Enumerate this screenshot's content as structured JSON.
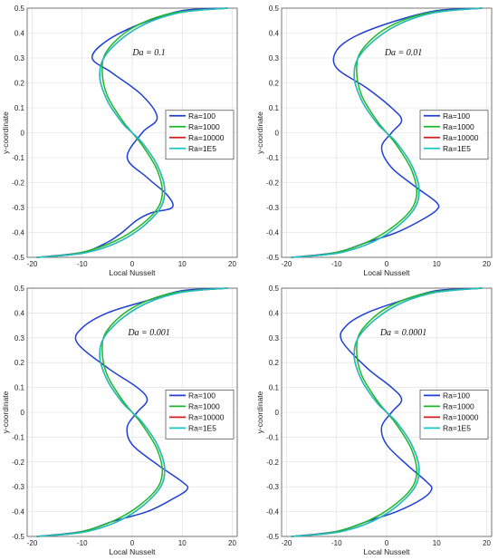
{
  "chart_data": [
    {
      "type": "line",
      "annotation": "Da = 0.1",
      "xlabel": "Local Nusselt",
      "ylabel": "y-coordinate",
      "xlim": [
        -21,
        21
      ],
      "ylim": [
        -0.5,
        0.5
      ],
      "xticks": [
        "-20",
        "-10",
        "0",
        "10",
        "20"
      ],
      "yticks": [
        "-0.5",
        "-0.4",
        "-0.3",
        "-0.2",
        "-0.1",
        "0",
        "0.1",
        "0.2",
        "0.3",
        "0.4",
        "0.5"
      ],
      "grid": true,
      "legend": "right",
      "series": [
        {
          "name": "Ra=100",
          "color": "#1f3fd6",
          "x": [
            -19,
            -10,
            -5,
            -2,
            1,
            4,
            8,
            7,
            3,
            -1,
            2,
            5,
            2,
            -4,
            -8,
            -5,
            2,
            10,
            19
          ],
          "y": [
            -0.5,
            -0.48,
            -0.44,
            -0.4,
            -0.35,
            -0.32,
            -0.3,
            -0.25,
            -0.18,
            -0.1,
            0,
            0.06,
            0.15,
            0.24,
            0.3,
            0.37,
            0.44,
            0.49,
            0.5
          ]
        },
        {
          "name": "Ra=1000",
          "color": "#1db82a",
          "x": [
            -19,
            -10,
            -2,
            4,
            6,
            5,
            2,
            0,
            -2,
            -5,
            -6,
            -5,
            0,
            8,
            19
          ],
          "y": [
            -0.5,
            -0.48,
            -0.42,
            -0.33,
            -0.25,
            -0.15,
            -0.05,
            0,
            0.05,
            0.15,
            0.25,
            0.33,
            0.42,
            0.48,
            0.5
          ]
        },
        {
          "name": "Ra=10000",
          "color": "#d61d1d",
          "x": [
            -19,
            -9,
            -1,
            5,
            6.5,
            5,
            2,
            0,
            -2,
            -5,
            -6.5,
            -5,
            1,
            9,
            19
          ],
          "y": [
            -0.5,
            -0.48,
            -0.42,
            -0.32,
            -0.23,
            -0.13,
            -0.04,
            0,
            0.04,
            0.13,
            0.23,
            0.32,
            0.42,
            0.48,
            0.5
          ]
        },
        {
          "name": "Ra=1E5",
          "color": "#18c4c4",
          "x": [
            -19,
            -9,
            -1,
            5,
            6.5,
            5,
            2,
            0,
            -2,
            -5,
            -6.5,
            -5,
            1,
            9,
            19
          ],
          "y": [
            -0.5,
            -0.48,
            -0.42,
            -0.32,
            -0.23,
            -0.13,
            -0.04,
            0,
            0.04,
            0.13,
            0.23,
            0.32,
            0.42,
            0.48,
            0.5
          ]
        }
      ]
    },
    {
      "type": "line",
      "annotation": "Da = 0.01",
      "xlabel": "Local Nusselt",
      "ylabel": "y-coordinate",
      "xlim": [
        -21,
        21
      ],
      "ylim": [
        -0.5,
        0.5
      ],
      "xticks": [
        "-20",
        "-10",
        "0",
        "10",
        "20"
      ],
      "yticks": [
        "-0.5",
        "-0.4",
        "-0.3",
        "-0.2",
        "-0.1",
        "0",
        "0.1",
        "0.2",
        "0.3",
        "0.4",
        "0.5"
      ],
      "grid": true,
      "legend": "right",
      "series": [
        {
          "name": "Ra=100",
          "color": "#1f3fd6",
          "x": [
            -19,
            -10,
            -4,
            2,
            7,
            10,
            10,
            6,
            1,
            -1,
            1,
            3,
            1,
            -4,
            -10,
            -10,
            -6,
            2,
            10,
            19
          ],
          "y": [
            -0.5,
            -0.48,
            -0.44,
            -0.4,
            -0.35,
            -0.31,
            -0.28,
            -0.22,
            -0.14,
            -0.06,
            0,
            0.05,
            0.1,
            0.18,
            0.26,
            0.33,
            0.39,
            0.45,
            0.49,
            0.5
          ]
        },
        {
          "name": "Ra=1000",
          "color": "#1db82a",
          "x": [
            -19,
            -10,
            -2,
            4,
            6,
            5,
            2,
            0,
            -2,
            -5,
            -6,
            -5,
            0,
            8,
            19
          ],
          "y": [
            -0.5,
            -0.48,
            -0.42,
            -0.33,
            -0.25,
            -0.15,
            -0.05,
            0,
            0.05,
            0.15,
            0.25,
            0.33,
            0.42,
            0.48,
            0.5
          ]
        },
        {
          "name": "Ra=10000",
          "color": "#d61d1d",
          "x": [
            -19,
            -9,
            -1,
            5,
            6.5,
            5,
            2,
            0,
            -2,
            -5,
            -6.5,
            -5,
            1,
            9,
            19
          ],
          "y": [
            -0.5,
            -0.48,
            -0.42,
            -0.32,
            -0.23,
            -0.13,
            -0.04,
            0,
            0.04,
            0.13,
            0.23,
            0.32,
            0.42,
            0.48,
            0.5
          ]
        },
        {
          "name": "Ra=1E5",
          "color": "#18c4c4",
          "x": [
            -19,
            -9,
            -1,
            5,
            6.5,
            5,
            2,
            0,
            -2,
            -5,
            -6.5,
            -5,
            1,
            9,
            19
          ],
          "y": [
            -0.5,
            -0.48,
            -0.42,
            -0.32,
            -0.23,
            -0.13,
            -0.04,
            0,
            0.04,
            0.13,
            0.23,
            0.32,
            0.42,
            0.48,
            0.5
          ]
        }
      ]
    },
    {
      "type": "line",
      "annotation": "Da = 0.001",
      "xlabel": "Local Nusselt",
      "ylabel": "y-coordinate",
      "xlim": [
        -21,
        21
      ],
      "ylim": [
        -0.5,
        0.5
      ],
      "xticks": [
        "-20",
        "-10",
        "0",
        "10",
        "20"
      ],
      "yticks": [
        "-0.5",
        "-0.4",
        "-0.3",
        "-0.2",
        "-0.1",
        "0",
        "0.1",
        "0.2",
        "0.3",
        "0.4",
        "0.5"
      ],
      "grid": true,
      "legend": "right",
      "series": [
        {
          "name": "Ra=100",
          "color": "#1f3fd6",
          "x": [
            -19,
            -10,
            -4,
            3,
            8,
            11,
            10,
            5,
            0,
            -1,
            1,
            3,
            1,
            -5,
            -11,
            -10,
            -5,
            3,
            10,
            19
          ],
          "y": [
            -0.5,
            -0.48,
            -0.44,
            -0.4,
            -0.35,
            -0.31,
            -0.28,
            -0.21,
            -0.13,
            -0.06,
            0,
            0.05,
            0.1,
            0.18,
            0.28,
            0.34,
            0.4,
            0.45,
            0.49,
            0.5
          ]
        },
        {
          "name": "Ra=1000",
          "color": "#1db82a",
          "x": [
            -19,
            -10,
            -2,
            4,
            6,
            5,
            2,
            0,
            -2,
            -5,
            -6,
            -5,
            0,
            8,
            19
          ],
          "y": [
            -0.5,
            -0.48,
            -0.42,
            -0.33,
            -0.25,
            -0.15,
            -0.05,
            0,
            0.05,
            0.15,
            0.25,
            0.33,
            0.42,
            0.48,
            0.5
          ]
        },
        {
          "name": "Ra=10000",
          "color": "#d61d1d",
          "x": [
            -19,
            -9,
            -1,
            5,
            6.5,
            5,
            2,
            0,
            -2,
            -5,
            -6.5,
            -5,
            1,
            9,
            19
          ],
          "y": [
            -0.5,
            -0.48,
            -0.42,
            -0.32,
            -0.23,
            -0.13,
            -0.04,
            0,
            0.04,
            0.13,
            0.23,
            0.32,
            0.42,
            0.48,
            0.5
          ]
        },
        {
          "name": "Ra=1E5",
          "color": "#18c4c4",
          "x": [
            -19,
            -9,
            -1,
            5,
            6.5,
            5,
            2,
            0,
            -2,
            -5,
            -6.5,
            -5,
            1,
            9,
            19
          ],
          "y": [
            -0.5,
            -0.48,
            -0.42,
            -0.32,
            -0.23,
            -0.13,
            -0.04,
            0,
            0.04,
            0.13,
            0.23,
            0.32,
            0.42,
            0.48,
            0.5
          ]
        }
      ]
    },
    {
      "type": "line",
      "annotation": "Da = 0.0001",
      "xlabel": "Local Nusselt",
      "ylabel": "y-coordinate",
      "xlim": [
        -21,
        21
      ],
      "ylim": [
        -0.5,
        0.5
      ],
      "xticks": [
        "-20",
        "-10",
        "0",
        "10",
        "20"
      ],
      "yticks": [
        "-0.5",
        "-0.4",
        "-0.3",
        "-0.2",
        "-0.1",
        "0",
        "0.1",
        "0.2",
        "0.3",
        "0.4",
        "0.5"
      ],
      "grid": true,
      "legend": "right",
      "series": [
        {
          "name": "Ra=100",
          "color": "#1f3fd6",
          "x": [
            -19,
            -10,
            -4,
            2,
            7,
            9,
            8,
            4,
            0,
            -1,
            1,
            3,
            1,
            -4,
            -9,
            -8,
            -4,
            3,
            10,
            19
          ],
          "y": [
            -0.5,
            -0.48,
            -0.44,
            -0.4,
            -0.35,
            -0.31,
            -0.28,
            -0.21,
            -0.13,
            -0.06,
            0,
            0.05,
            0.1,
            0.18,
            0.29,
            0.35,
            0.4,
            0.45,
            0.49,
            0.5
          ]
        },
        {
          "name": "Ra=1000",
          "color": "#1db82a",
          "x": [
            -19,
            -10,
            -2,
            4,
            6,
            5,
            2,
            0,
            -2,
            -5,
            -6,
            -5,
            0,
            8,
            19
          ],
          "y": [
            -0.5,
            -0.48,
            -0.42,
            -0.33,
            -0.25,
            -0.15,
            -0.05,
            0,
            0.05,
            0.15,
            0.25,
            0.33,
            0.42,
            0.48,
            0.5
          ]
        },
        {
          "name": "Ra=10000",
          "color": "#d61d1d",
          "x": [
            -19,
            -9,
            -1,
            5,
            6.5,
            5,
            2,
            0,
            -2,
            -5,
            -6.5,
            -5,
            1,
            9,
            19
          ],
          "y": [
            -0.5,
            -0.48,
            -0.42,
            -0.32,
            -0.23,
            -0.13,
            -0.04,
            0,
            0.04,
            0.13,
            0.23,
            0.32,
            0.42,
            0.48,
            0.5
          ]
        },
        {
          "name": "Ra=1E5",
          "color": "#18c4c4",
          "x": [
            -19,
            -9,
            -1,
            5,
            6.5,
            5,
            2,
            0,
            -2,
            -5,
            -6.5,
            -5,
            1,
            9,
            19
          ],
          "y": [
            -0.5,
            -0.48,
            -0.42,
            -0.32,
            -0.23,
            -0.13,
            -0.04,
            0,
            0.04,
            0.13,
            0.23,
            0.32,
            0.42,
            0.48,
            0.5
          ]
        }
      ]
    }
  ]
}
